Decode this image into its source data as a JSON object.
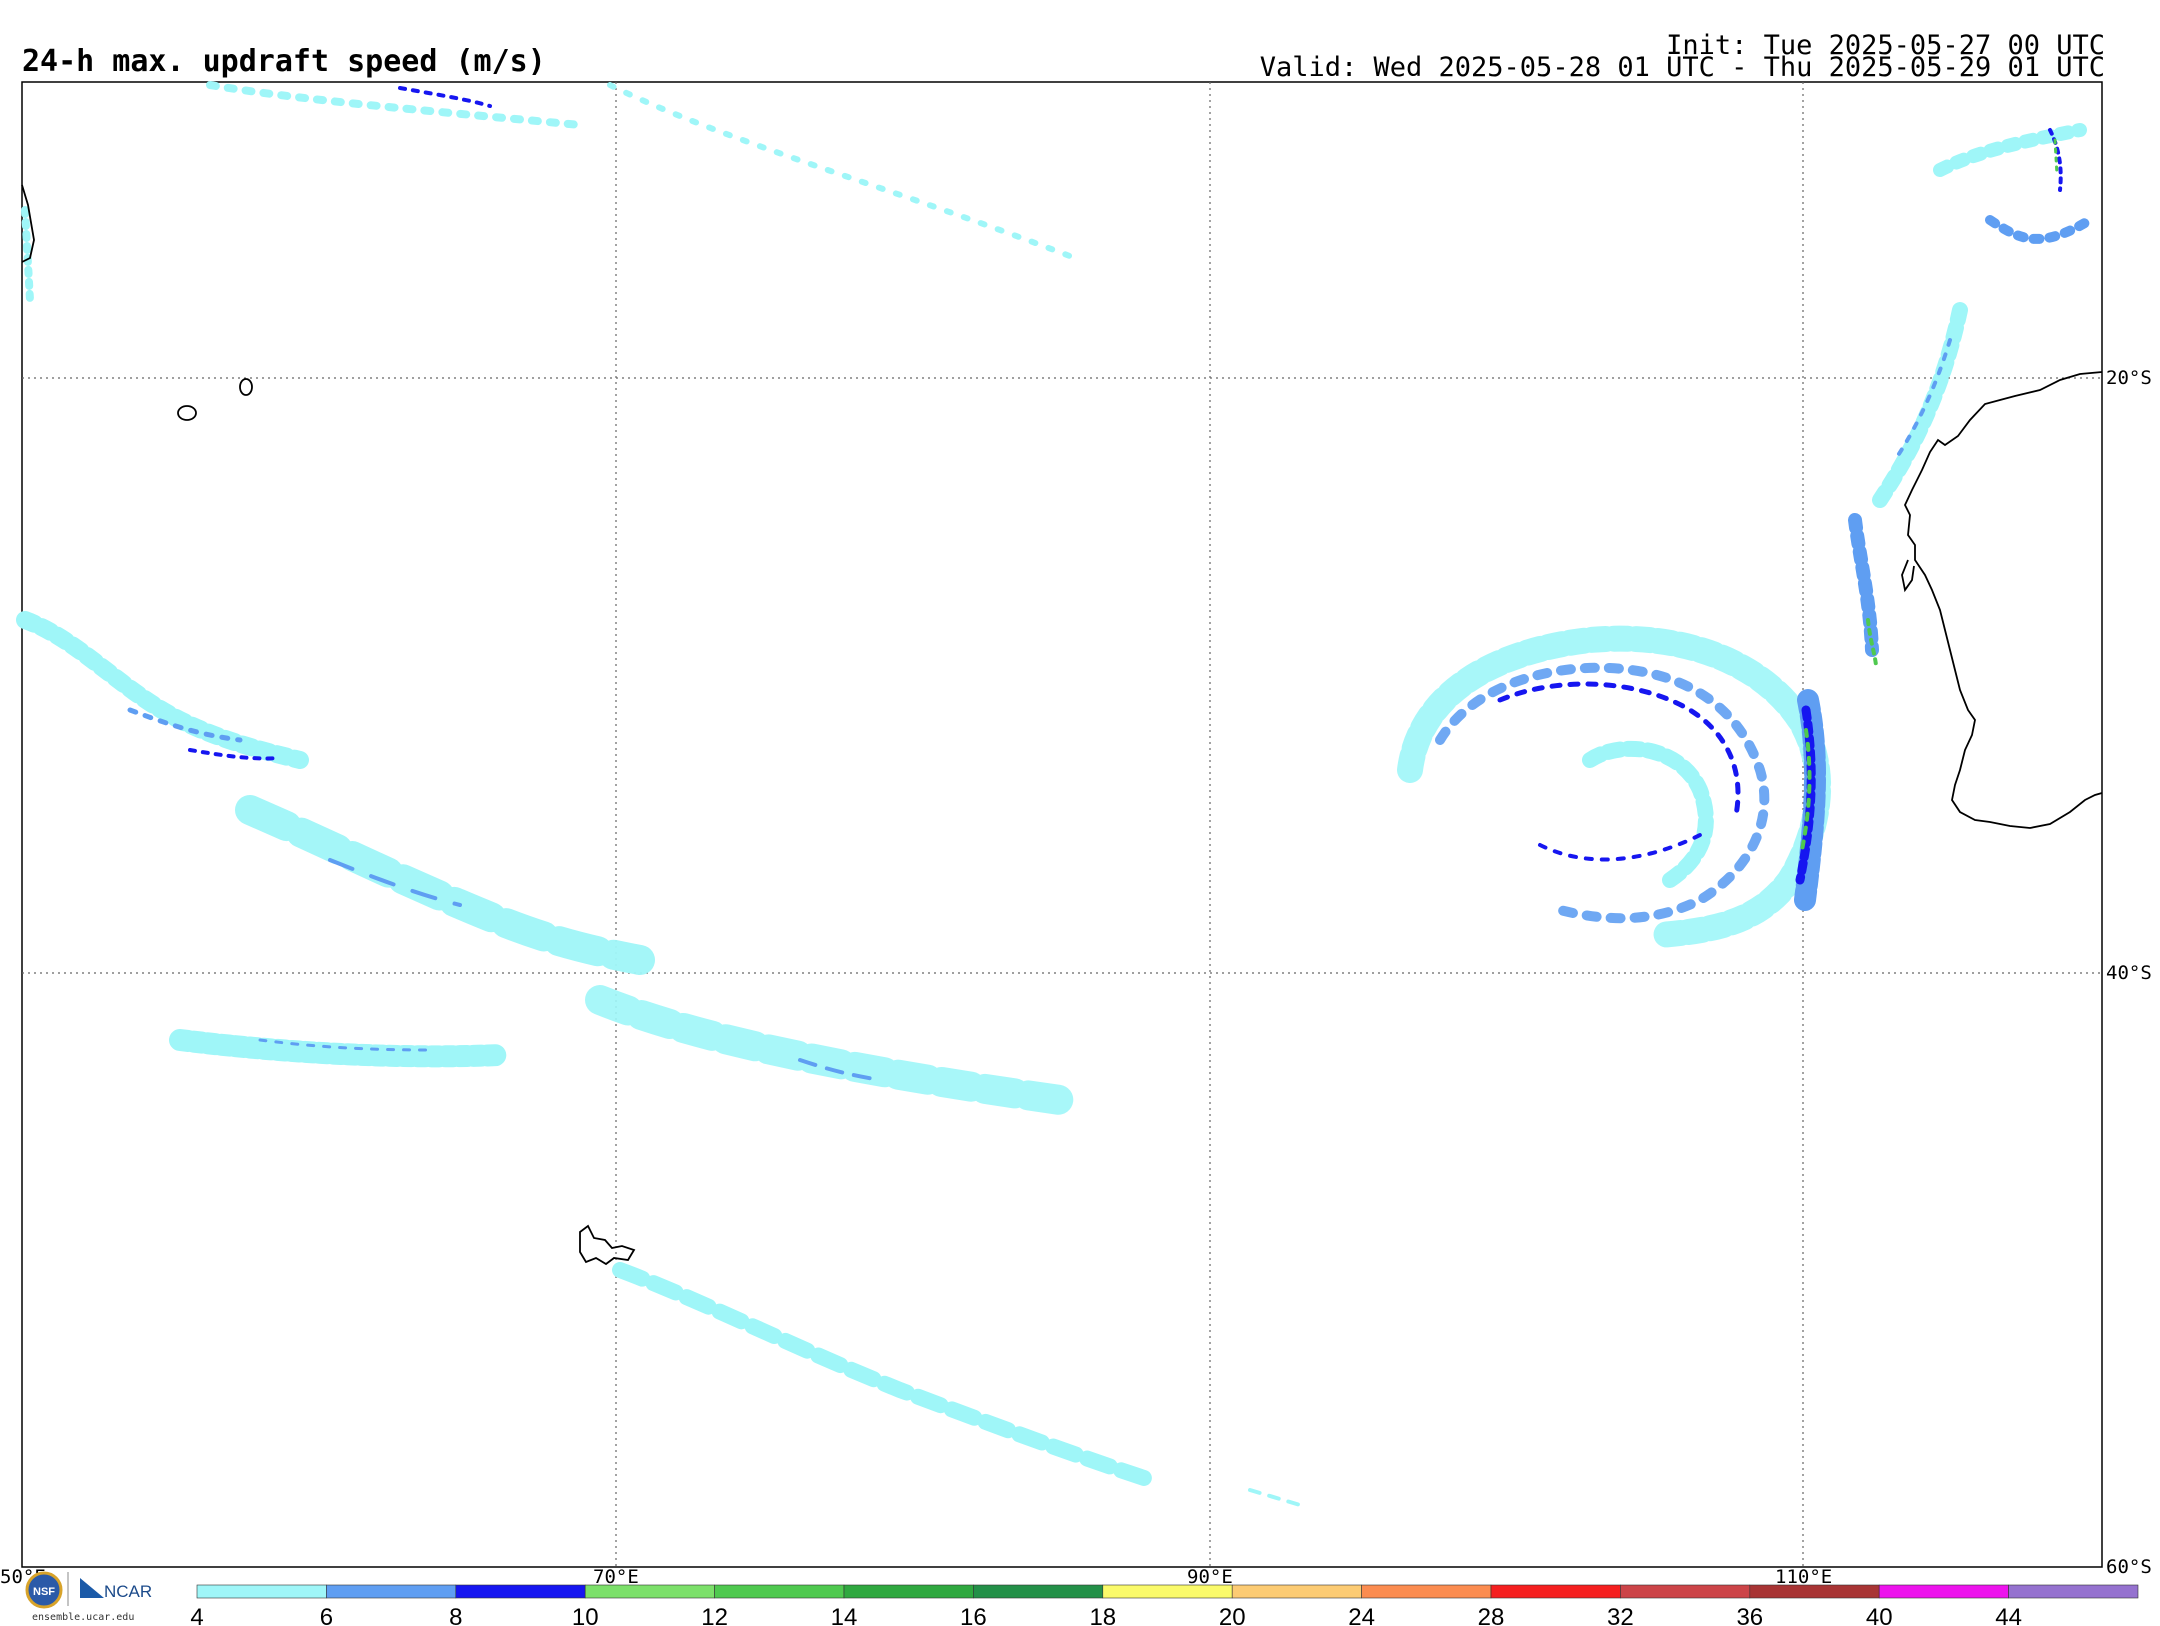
{
  "header": {
    "title": "24-h max. updraft speed (m/s)",
    "init": "Init: Tue 2025-05-27 00 UTC",
    "valid": "Valid: Wed 2025-05-28 01 UTC - Thu 2025-05-29 01 UTC"
  },
  "map": {
    "lat_labels": [
      "20°S",
      "40°S",
      "60°S"
    ],
    "lon_labels": [
      "50°E",
      "70°E",
      "90°E",
      "110°E"
    ],
    "lon_range_deg": [
      50,
      120
    ],
    "lat_range_deg": [
      -10,
      -60
    ]
  },
  "colorbar": {
    "ticks": [
      "4",
      "6",
      "8",
      "10",
      "12",
      "14",
      "16",
      "18",
      "20",
      "24",
      "28",
      "32",
      "36",
      "40",
      "44"
    ],
    "colors": [
      "#9ff6f8",
      "#5f9ef2",
      "#1616f0",
      "#7ce06a",
      "#4fc94f",
      "#2fa83f",
      "#239048",
      "#fafa6a",
      "#fccb73",
      "#fb8c50",
      "#f51f1f",
      "#cc4448",
      "#a83434",
      "#ed13ed",
      "#9572cf"
    ]
  },
  "footer": {
    "logo_credit": "ensemble.ucar.edu",
    "logo_nsf": "NSF",
    "logo_ncar": "NCAR"
  }
}
